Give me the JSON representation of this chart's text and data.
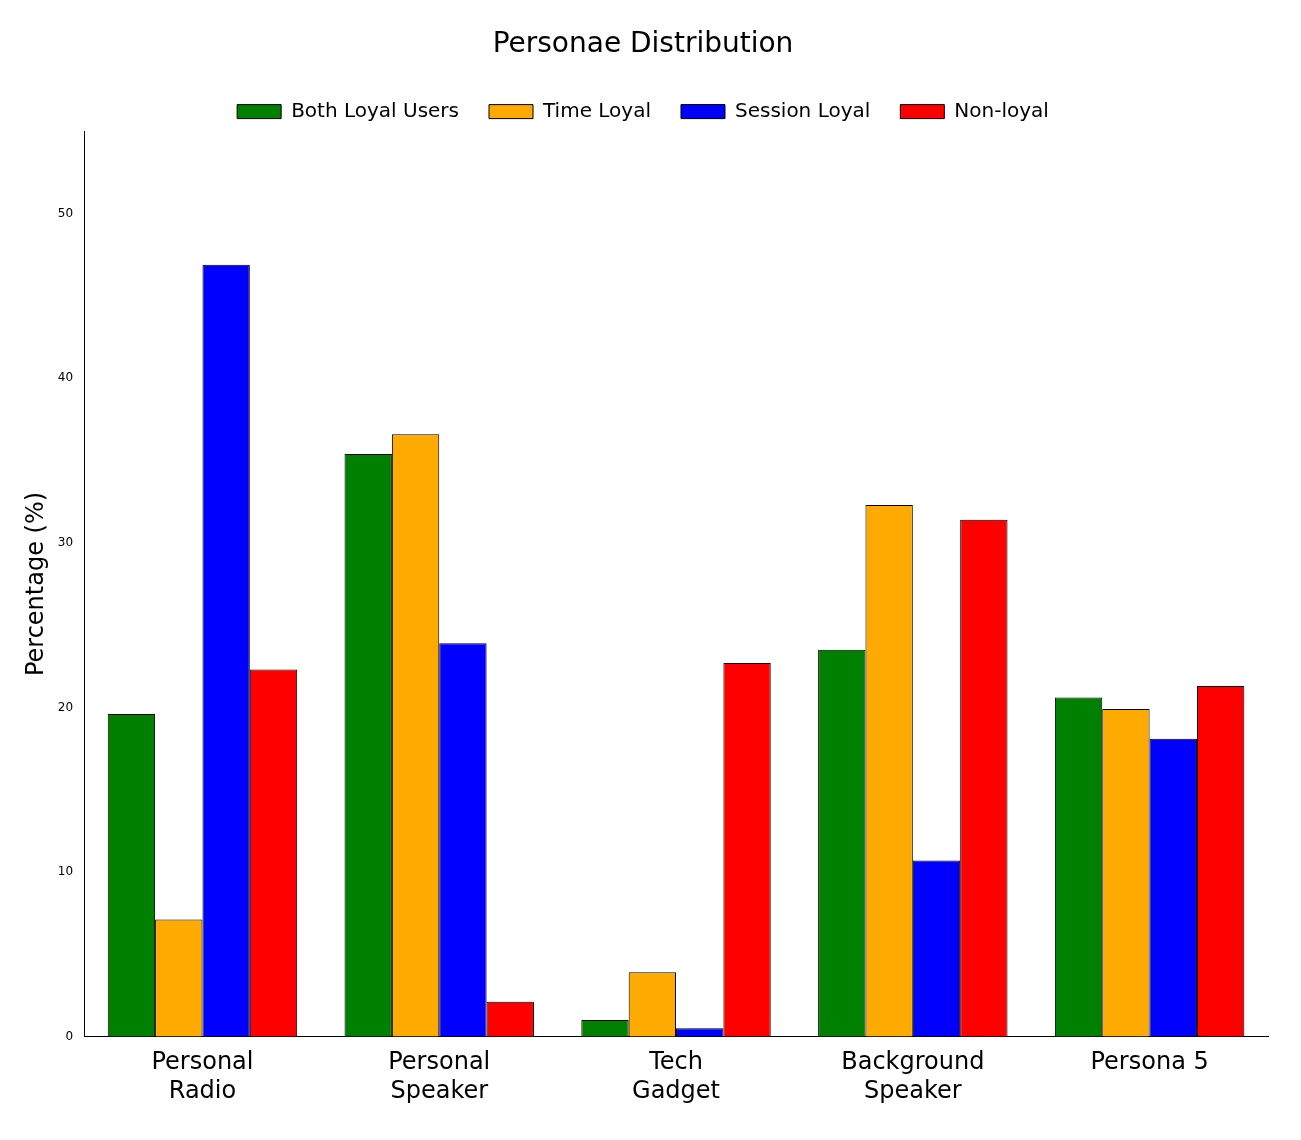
{
  "chart_data": {
    "type": "bar",
    "title": "Personae Distribution",
    "ylabel": "Percentage (%)",
    "categories": [
      "Personal\nRadio",
      "Personal\nSpeaker",
      "Tech\nGadget",
      "Background\nSpeaker",
      "Persona 5"
    ],
    "series": [
      {
        "name": "Both Loyal Users",
        "color": "#008000",
        "values": [
          19.6,
          35.4,
          1.0,
          23.5,
          20.6
        ]
      },
      {
        "name": "Time Loyal",
        "color": "#ffaa00",
        "values": [
          7.1,
          36.6,
          3.9,
          32.3,
          19.9
        ]
      },
      {
        "name": "Session Loyal",
        "color": "#0000ff",
        "values": [
          46.9,
          23.9,
          0.5,
          10.7,
          18.1
        ]
      },
      {
        "name": "Non-loyal",
        "color": "#ff0000",
        "values": [
          22.3,
          2.1,
          22.7,
          31.4,
          21.3
        ]
      }
    ],
    "ylim": [
      0,
      55
    ],
    "yticks": [
      0,
      10,
      20,
      30,
      40,
      50
    ],
    "grid": false,
    "legend": "top"
  }
}
